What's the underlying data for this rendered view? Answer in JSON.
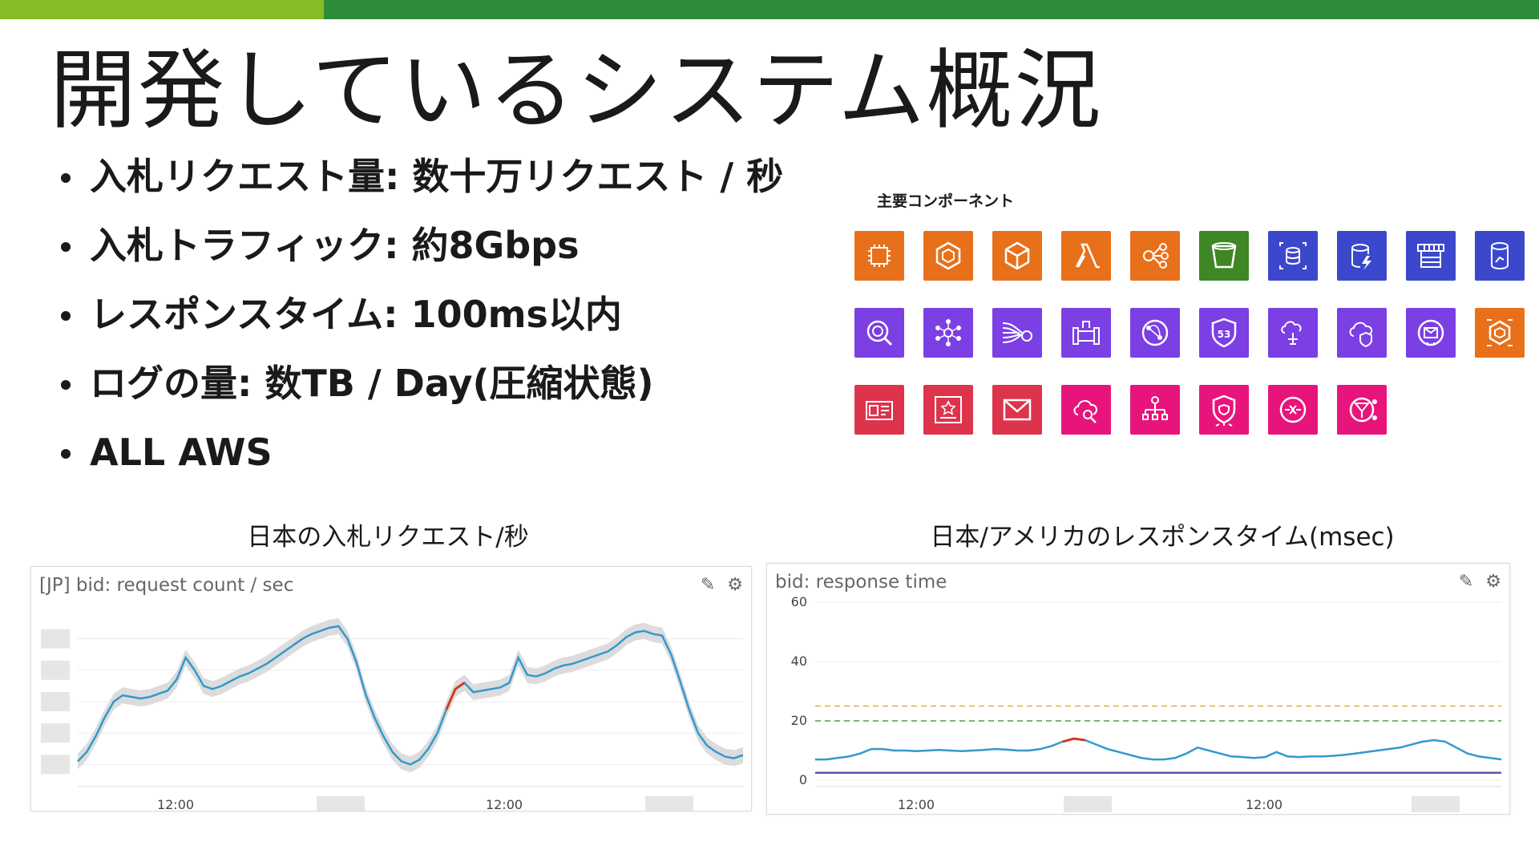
{
  "colors": {
    "bar_light": "#86bc25",
    "bar_dark": "#2e8b3a",
    "series_blue": "#3399cc",
    "band_gray": "#d8d8d8",
    "anomaly_red": "#d43a1a"
  },
  "slide": {
    "title": "開発しているシステム概況",
    "bullets": [
      "入札リクエスト量: 数十万リクエスト / 秒",
      "入札トラフィック: 約8Gbps",
      "レスポンスタイム: 100ms以内",
      "ログの量: 数TB / Day(圧縮状態)",
      "ALL AWS"
    ],
    "components_label": "主要コンポーネント",
    "components": [
      {
        "icon": "ec2-instance-icon",
        "color": "#e8701a"
      },
      {
        "icon": "ecs-icon",
        "color": "#e8701a"
      },
      {
        "icon": "elastic-beanstalk-icon",
        "color": "#e8701a"
      },
      {
        "icon": "lambda-icon",
        "color": "#e8701a"
      },
      {
        "icon": "step-functions-icon",
        "color": "#e8701a"
      },
      {
        "icon": "s3-bucket-icon",
        "color": "#3f8624"
      },
      {
        "icon": "database-migration-icon",
        "color": "#3b48cc"
      },
      {
        "icon": "dynamodb-icon",
        "color": "#3b48cc"
      },
      {
        "icon": "elasticache-icon",
        "color": "#3b48cc"
      },
      {
        "icon": "aurora-icon",
        "color": "#3b48cc"
      },
      {
        "icon": "athena-icon",
        "color": "#7b3fe4"
      },
      {
        "icon": "msk-icon",
        "color": "#7b3fe4"
      },
      {
        "icon": "kinesis-icon",
        "color": "#7b3fe4"
      },
      {
        "icon": "data-pipeline-icon",
        "color": "#7b3fe4"
      },
      {
        "icon": "cloudfront-icon",
        "color": "#7b3fe4"
      },
      {
        "icon": "route53-icon",
        "color": "#7b3fe4"
      },
      {
        "icon": "direct-connect-icon",
        "color": "#7b3fe4"
      },
      {
        "icon": "shield-icon",
        "color": "#7b3fe4"
      },
      {
        "icon": "vpc-endpoint-icon",
        "color": "#7b3fe4"
      },
      {
        "icon": "iot-icon",
        "color": "#e8701a"
      },
      {
        "icon": "secrets-manager-icon",
        "color": "#dd344c"
      },
      {
        "icon": "certificate-manager-icon",
        "color": "#dd344c"
      },
      {
        "icon": "ses-mail-icon",
        "color": "#dd344c"
      },
      {
        "icon": "cloudwatch-icon",
        "color": "#e7157b"
      },
      {
        "icon": "organizations-icon",
        "color": "#e7157b"
      },
      {
        "icon": "guardduty-icon",
        "color": "#e7157b"
      },
      {
        "icon": "eventbridge-icon",
        "color": "#e7157b"
      },
      {
        "icon": "config-icon",
        "color": "#e7157b"
      }
    ]
  },
  "charts": {
    "left": {
      "caption": "日本の入札リクエスト/秒",
      "panel_title": "[JP] bid: request count / sec",
      "tools": {
        "edit": "✎",
        "settings": "⚙"
      }
    },
    "right": {
      "caption": "日本/アメリカのレスポンスタイム(msec)",
      "panel_title": "bid: response time",
      "tools": {
        "edit": "✎",
        "settings": "⚙"
      }
    }
  },
  "chart_data": [
    {
      "type": "line",
      "title": "[JP] bid: request count / sec",
      "xlabel": "",
      "ylabel": "",
      "x_ticks": [
        "12:00",
        "12:00"
      ],
      "y_ticks": [],
      "grid": true,
      "series": [
        {
          "values": [
            0.12,
            0.18,
            0.28,
            0.4,
            0.5,
            0.54,
            0.53,
            0.52,
            0.53,
            0.55,
            0.57,
            0.64,
            0.78,
            0.7,
            0.6,
            0.58,
            0.6,
            0.63,
            0.66,
            0.68,
            0.71,
            0.74,
            0.78,
            0.82,
            0.86,
            0.9,
            0.93,
            0.95,
            0.97,
            0.98,
            0.9,
            0.75,
            0.55,
            0.4,
            0.28,
            0.18,
            0.12,
            0.1,
            0.13,
            0.2,
            0.3,
            0.45,
            0.58,
            0.62,
            0.56,
            0.57,
            0.58,
            0.59,
            0.62,
            0.78,
            0.67,
            0.66,
            0.68,
            0.71,
            0.73,
            0.74,
            0.76,
            0.78,
            0.8,
            0.82,
            0.86,
            0.91,
            0.94,
            0.95,
            0.93,
            0.92,
            0.8,
            0.63,
            0.45,
            0.3,
            0.22,
            0.18,
            0.15,
            0.14,
            0.16
          ]
        }
      ]
    },
    {
      "type": "line",
      "title": "bid: response time",
      "xlabel": "",
      "ylabel": "",
      "x_ticks": [
        "12:00",
        "12:00"
      ],
      "y_ticks": [
        0,
        20,
        40,
        60
      ],
      "ylim": [
        0,
        60
      ],
      "grid": true,
      "thresholds": [
        25,
        20
      ],
      "series": [
        {
          "values": [
            7,
            7,
            7.5,
            8,
            9,
            10.5,
            10.5,
            10,
            10,
            9.8,
            10,
            10.2,
            10,
            9.8,
            10,
            10.2,
            10.5,
            10.3,
            10,
            10,
            10.5,
            11.5,
            13,
            14,
            13.5,
            12,
            10.5,
            9.5,
            8.5,
            7.5,
            7,
            7,
            7.5,
            9,
            11,
            10,
            9,
            8,
            7.8,
            7.5,
            7.8,
            9.5,
            8,
            7.8,
            8,
            8,
            8.2,
            8.5,
            9,
            9.5,
            10,
            10.5,
            11,
            12,
            13,
            13.5,
            13,
            11,
            9,
            8,
            7.5,
            7
          ]
        },
        {
          "values": [
            2.5,
            2.5,
            2.5,
            2.5,
            2.5,
            2.5,
            2.5,
            2.5,
            2.5,
            2.5,
            2.5,
            2.5,
            2.5,
            2.5,
            2.5,
            2.5,
            2.5,
            2.5,
            2.5,
            2.5,
            2.5,
            2.5,
            2.5,
            2.5,
            2.5,
            2.5,
            2.5,
            2.5,
            2.5,
            2.5,
            2.5,
            2.5,
            2.5,
            2.5,
            2.5,
            2.5,
            2.5,
            2.5,
            2.5,
            2.5,
            2.5,
            2.5,
            2.5,
            2.5,
            2.5,
            2.5,
            2.5,
            2.5,
            2.5,
            2.5,
            2.5,
            2.5,
            2.5,
            2.5,
            2.5,
            2.5,
            2.5,
            2.5,
            2.5,
            2.5,
            2.5,
            2.5
          ]
        }
      ]
    }
  ]
}
